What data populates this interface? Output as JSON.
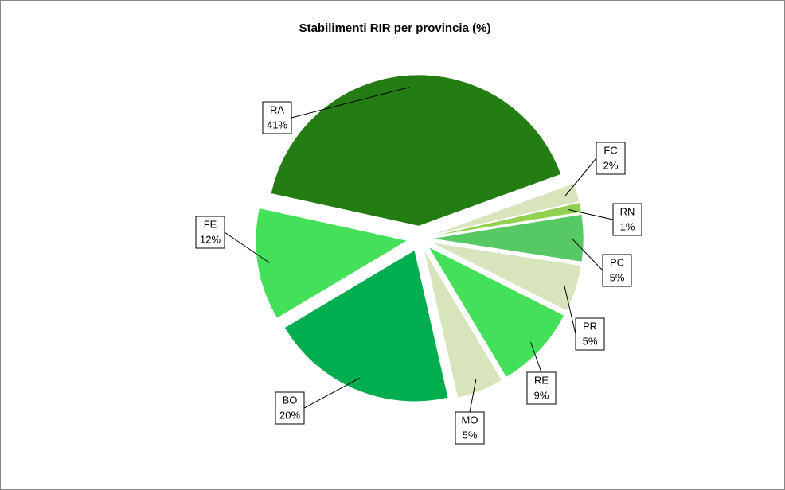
{
  "chart_data": {
    "type": "pie",
    "title": "Stabilimenti RIR per provincia (%)",
    "categories": [
      "RA",
      "FC",
      "RN",
      "PC",
      "PR",
      "RE",
      "MO",
      "BO",
      "FE"
    ],
    "values": [
      41,
      2,
      1,
      5,
      5,
      9,
      5,
      20,
      12
    ],
    "value_labels": [
      "41%",
      "2%",
      "1%",
      "5%",
      "5%",
      "9%",
      "5%",
      "20%",
      "12%"
    ],
    "colors": [
      "#237d12",
      "#d8e4bc",
      "#92d050",
      "#56c864",
      "#d8e4bc",
      "#45e05a",
      "#d8e4bc",
      "#00ad4f",
      "#45e05a"
    ]
  }
}
